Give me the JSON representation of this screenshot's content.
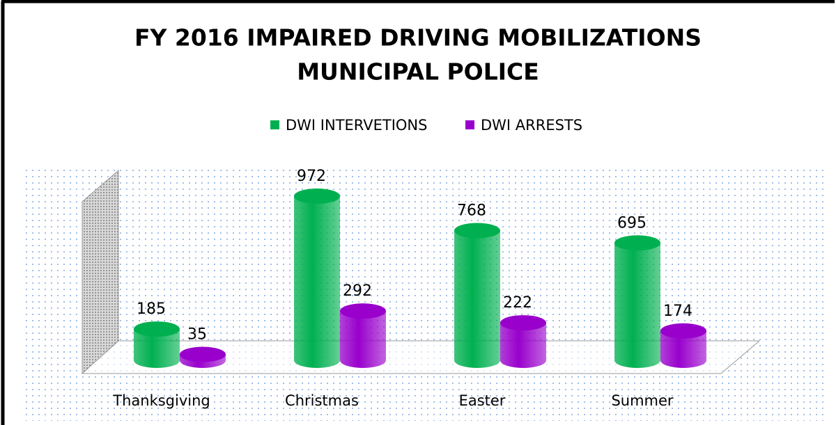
{
  "chart_data": {
    "type": "bar3d",
    "title": "FY 2016 IMPAIRED DRIVING MOBILIZATIONS",
    "subtitle": "MUNICIPAL POLICE",
    "categories": [
      "Thanksgiving",
      "Christmas",
      "Easter",
      "Summer"
    ],
    "series": [
      {
        "name": "DWI INTERVETIONS",
        "color": "#00b050",
        "values": [
          185,
          972,
          768,
          695
        ]
      },
      {
        "name": "DWI ARRESTS",
        "color": "#9900cc",
        "values": [
          35,
          292,
          222,
          174
        ]
      }
    ],
    "legend": "top"
  }
}
